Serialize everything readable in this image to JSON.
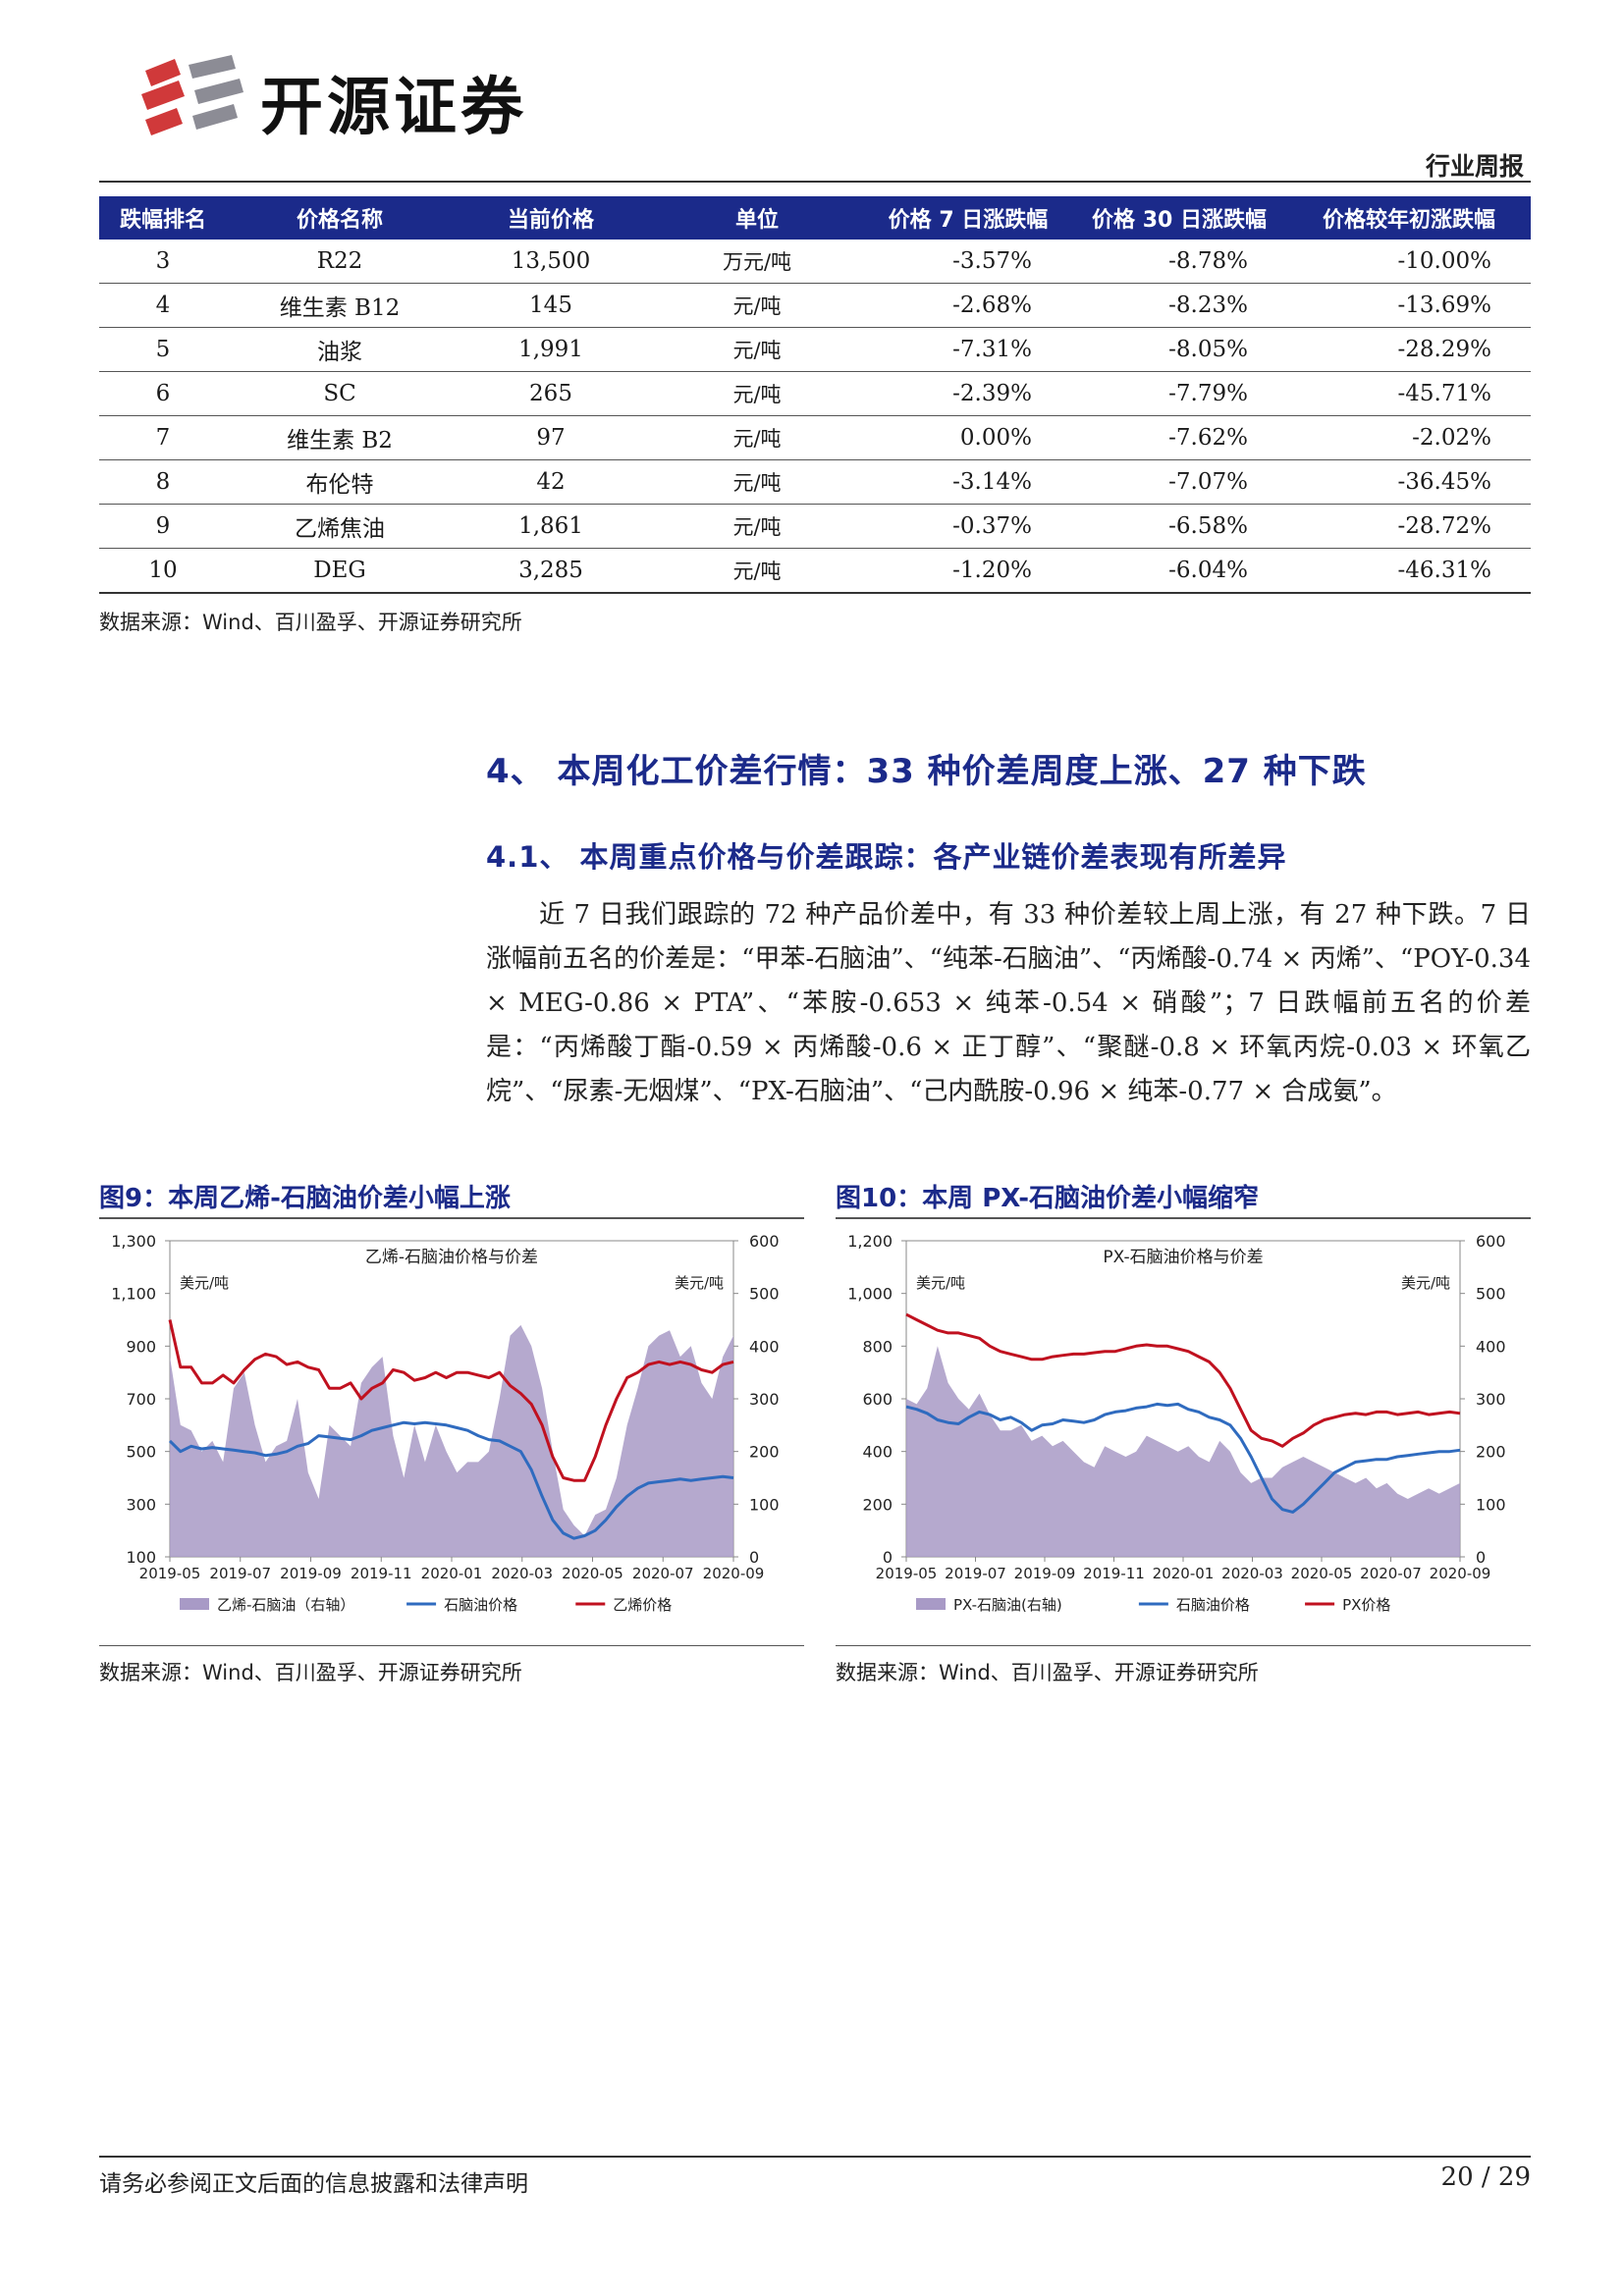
{
  "header": {
    "logo_text": "开源证券",
    "report_type": "行业周报"
  },
  "table": {
    "columns": [
      "跌幅排名",
      "价格名称",
      "当前价格",
      "单位",
      "价格 7 日涨跌幅",
      "价格 30 日涨跌幅",
      "价格较年初涨跌幅"
    ],
    "rows": [
      [
        "3",
        "R22",
        "13,500",
        "万元/吨",
        "-3.57%",
        "-8.78%",
        "-10.00%"
      ],
      [
        "4",
        "维生素 B12",
        "145",
        "元/吨",
        "-2.68%",
        "-8.23%",
        "-13.69%"
      ],
      [
        "5",
        "油浆",
        "1,991",
        "元/吨",
        "-7.31%",
        "-8.05%",
        "-28.29%"
      ],
      [
        "6",
        "SC",
        "265",
        "元/吨",
        "-2.39%",
        "-7.79%",
        "-45.71%"
      ],
      [
        "7",
        "维生素 B2",
        "97",
        "元/吨",
        "0.00%",
        "-7.62%",
        "-2.02%"
      ],
      [
        "8",
        "布伦特",
        "42",
        "元/吨",
        "-3.14%",
        "-7.07%",
        "-36.45%"
      ],
      [
        "9",
        "乙烯焦油",
        "1,861",
        "元/吨",
        "-0.37%",
        "-6.58%",
        "-28.72%"
      ],
      [
        "10",
        "DEG",
        "3,285",
        "元/吨",
        "-1.20%",
        "-6.04%",
        "-46.31%"
      ]
    ],
    "source": "数据来源：Wind、百川盈孚、开源证券研究所"
  },
  "section": {
    "h1": "4、 本周化工价差行情：33 种价差周度上涨、27 种下跌",
    "h2": "4.1、 本周重点价格与价差跟踪：各产业链价差表现有所差异",
    "paragraph": "近 7 日我们跟踪的 72 种产品价差中，有 33 种价差较上周上涨，有 27 种下跌。7 日涨幅前五名的价差是：“甲苯-石脑油”、“纯苯-石脑油”、“丙烯酸-0.74 × 丙烯”、“POY-0.34 × MEG-0.86 × PTA”、“苯胺-0.653 × 纯苯-0.54 × 硝酸”；7 日跌幅前五名的价差是：“丙烯酸丁酯-0.59 × 丙烯酸-0.6 × 正丁醇”、“聚醚-0.8 × 环氧丙烷-0.03 × 环氧乙烷”、“尿素-无烟煤”、“PX-石脑油”、“己内酰胺-0.96 × 纯苯-0.77 × 合成氨”。"
  },
  "figures": [
    {
      "title": "图9：本周乙烯-石脑油价差小幅上涨",
      "source": "数据来源：Wind、百川盈孚、开源证券研究所"
    },
    {
      "title": "图10：本周 PX-石脑油价差小幅缩窄",
      "source": "数据来源：Wind、百川盈孚、开源证券研究所"
    }
  ],
  "chart_data": [
    {
      "type": "area",
      "title": "乙烯-石脑油价格与价差",
      "left_unit": "美元/吨",
      "right_unit": "美元/吨",
      "left_ticks": [
        "1,300",
        "1,100",
        "900",
        "700",
        "500",
        "300",
        "100"
      ],
      "left_range": [
        100,
        1300
      ],
      "right_ticks": [
        "600",
        "500",
        "400",
        "300",
        "200",
        "100",
        "0"
      ],
      "right_range": [
        0,
        600
      ],
      "x_ticks": [
        "2019-05",
        "2019-07",
        "2019-09",
        "2019-11",
        "2020-01",
        "2020-03",
        "2020-05",
        "2020-07",
        "2020-09"
      ],
      "series": [
        {
          "name": "乙烯-石脑油（右轴）",
          "kind": "area",
          "axis": "right",
          "color": "#a89ac6",
          "values": [
            380,
            250,
            240,
            200,
            220,
            180,
            320,
            350,
            250,
            180,
            210,
            220,
            300,
            160,
            110,
            250,
            230,
            210,
            330,
            360,
            380,
            230,
            150,
            250,
            180,
            250,
            200,
            160,
            180,
            180,
            200,
            300,
            420,
            440,
            400,
            320,
            200,
            90,
            60,
            40,
            80,
            90,
            150,
            250,
            320,
            400,
            420,
            430,
            380,
            400,
            330,
            300,
            380,
            420
          ]
        },
        {
          "name": "石脑油价格",
          "kind": "line",
          "axis": "left",
          "color": "#2f6bbf",
          "values": [
            540,
            500,
            520,
            510,
            515,
            510,
            505,
            500,
            495,
            485,
            490,
            500,
            520,
            530,
            560,
            555,
            550,
            545,
            560,
            580,
            590,
            600,
            610,
            605,
            610,
            605,
            600,
            590,
            580,
            560,
            545,
            540,
            520,
            500,
            430,
            330,
            240,
            190,
            170,
            180,
            200,
            240,
            290,
            330,
            360,
            380,
            385,
            390,
            395,
            390,
            395,
            400,
            405,
            400
          ]
        },
        {
          "name": "乙烯价格",
          "kind": "line",
          "axis": "left",
          "color": "#c0111f",
          "values": [
            1000,
            820,
            820,
            760,
            760,
            790,
            760,
            810,
            850,
            870,
            860,
            830,
            840,
            820,
            810,
            740,
            740,
            760,
            700,
            740,
            760,
            810,
            800,
            770,
            780,
            800,
            780,
            800,
            800,
            790,
            780,
            800,
            750,
            720,
            680,
            600,
            480,
            400,
            390,
            390,
            480,
            600,
            700,
            780,
            800,
            830,
            840,
            830,
            840,
            830,
            810,
            800,
            830,
            840
          ]
        }
      ]
    },
    {
      "type": "area",
      "title": "PX-石脑油价格与价差",
      "left_unit": "美元/吨",
      "right_unit": "美元/吨",
      "left_ticks": [
        "1,200",
        "1,000",
        "800",
        "600",
        "400",
        "200",
        "0"
      ],
      "left_range": [
        0,
        1200
      ],
      "right_ticks": [
        "600",
        "500",
        "400",
        "300",
        "200",
        "100",
        "0"
      ],
      "right_range": [
        0,
        600
      ],
      "x_ticks": [
        "2019-05",
        "2019-07",
        "2019-09",
        "2019-11",
        "2020-01",
        "2020-03",
        "2020-05",
        "2020-07",
        "2020-09"
      ],
      "series": [
        {
          "name": "PX-石脑油(右轴)",
          "kind": "area",
          "axis": "right",
          "color": "#a89ac6",
          "values": [
            300,
            290,
            320,
            400,
            330,
            300,
            280,
            310,
            270,
            240,
            240,
            250,
            220,
            230,
            210,
            220,
            200,
            180,
            170,
            210,
            200,
            190,
            200,
            230,
            220,
            210,
            200,
            210,
            190,
            180,
            220,
            200,
            160,
            140,
            150,
            150,
            170,
            180,
            190,
            180,
            170,
            160,
            150,
            140,
            150,
            130,
            140,
            120,
            110,
            120,
            130,
            120,
            130,
            140
          ]
        },
        {
          "name": "石脑油价格",
          "kind": "line",
          "axis": "left",
          "color": "#2f6bbf",
          "values": [
            570,
            560,
            545,
            520,
            510,
            505,
            530,
            550,
            540,
            520,
            530,
            510,
            480,
            500,
            505,
            520,
            515,
            510,
            520,
            540,
            550,
            555,
            565,
            570,
            580,
            575,
            580,
            560,
            550,
            530,
            520,
            500,
            450,
            380,
            300,
            220,
            180,
            170,
            200,
            240,
            280,
            320,
            340,
            360,
            365,
            370,
            370,
            380,
            385,
            390,
            395,
            400,
            400,
            405
          ]
        },
        {
          "name": "PX价格",
          "kind": "line",
          "axis": "left",
          "color": "#c0111f",
          "values": [
            920,
            900,
            880,
            860,
            850,
            850,
            840,
            830,
            800,
            780,
            770,
            760,
            750,
            750,
            760,
            765,
            770,
            770,
            775,
            780,
            780,
            790,
            800,
            805,
            800,
            800,
            790,
            780,
            760,
            740,
            700,
            640,
            560,
            480,
            450,
            440,
            420,
            450,
            470,
            500,
            520,
            530,
            540,
            545,
            540,
            550,
            550,
            540,
            545,
            550,
            540,
            545,
            550,
            545
          ]
        }
      ]
    }
  ],
  "footer": {
    "disclaimer": "请务必参阅正文后面的信息披露和法律声明",
    "page": "20 / 29"
  },
  "colors": {
    "brand_blue": "#1b2a8a",
    "logo_red": "#d0393a",
    "logo_gray": "#8c8c95"
  }
}
